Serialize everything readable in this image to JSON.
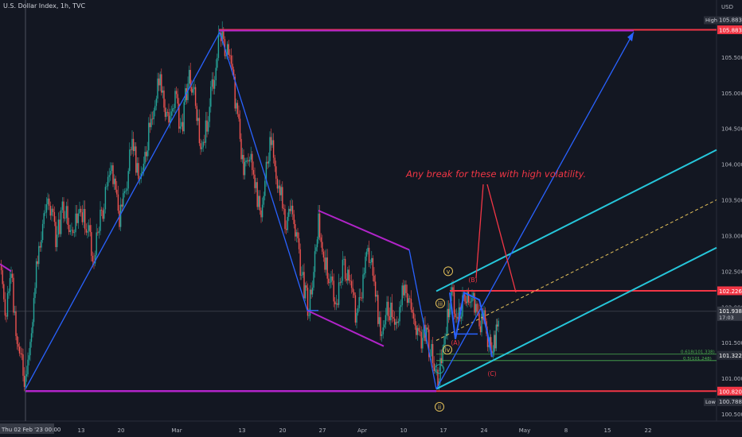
{
  "window": {
    "title": "U.S. Dollar Index, 1h, TVC",
    "currency": "USD",
    "annotation": "Any break for these with high volatility.",
    "date_label": "Thu 02 Feb '23  00:00",
    "time_left": "17:03"
  },
  "colors": {
    "background": "#131722",
    "up": "#26a69a",
    "down": "#ef5350",
    "wave": "#2962ff",
    "magenta": "#b124c9",
    "cyan": "#26c6da",
    "red_line": "#f23645",
    "yellow": "#e6c25a"
  },
  "chart_data": {
    "type": "candlestick",
    "title": "U.S. Dollar Index, 1h, TVC",
    "ylim": [
      100.4,
      106.3
    ],
    "y_ticks": [
      100.5,
      101.0,
      101.5,
      102.0,
      102.5,
      103.0,
      103.5,
      104.0,
      104.5,
      105.0,
      105.5
    ],
    "x_tick_labels": [
      "13",
      "20",
      "Mar",
      "13",
      "20",
      "27",
      "Apr",
      "10",
      "17",
      "24",
      "May",
      "8",
      "15",
      "22"
    ],
    "price_tags": {
      "high_label": "High",
      "high": 105.883,
      "high_line": 105.883,
      "resistance": 102.226,
      "current": 101.938,
      "support": 101.322,
      "low_line": 100.82,
      "low_label": "Low",
      "low": 100.788
    },
    "fib_labels": [
      "0.618(101.338)",
      "0.5(101.248)"
    ],
    "wave_labels": [
      "v",
      "iii",
      "iv",
      "i",
      "ii",
      "(A)",
      "(B)",
      "(C)"
    ],
    "path_points": [
      [
        0,
        102.6
      ],
      [
        8,
        101.9
      ],
      [
        14,
        102.5
      ],
      [
        20,
        101.7
      ],
      [
        26,
        101.4
      ],
      [
        32,
        100.85
      ],
      [
        38,
        101.6
      ],
      [
        44,
        102.3
      ],
      [
        52,
        103.1
      ],
      [
        60,
        103.5
      ],
      [
        70,
        103.0
      ],
      [
        80,
        103.4
      ],
      [
        90,
        102.9
      ],
      [
        100,
        103.5
      ],
      [
        110,
        103.1
      ],
      [
        118,
        102.7
      ],
      [
        126,
        103.2
      ],
      [
        134,
        103.6
      ],
      [
        142,
        103.9
      ],
      [
        150,
        103.3
      ],
      [
        158,
        103.7
      ],
      [
        166,
        104.3
      ],
      [
        174,
        103.9
      ],
      [
        182,
        104.1
      ],
      [
        190,
        104.6
      ],
      [
        198,
        105.2
      ],
      [
        206,
        104.9
      ],
      [
        212,
        104.6
      ],
      [
        220,
        104.9
      ],
      [
        228,
        104.5
      ],
      [
        236,
        105.2
      ],
      [
        244,
        104.9
      ],
      [
        252,
        104.3
      ],
      [
        260,
        104.6
      ],
      [
        268,
        105.2
      ],
      [
        276,
        105.8
      ],
      [
        284,
        105.6
      ],
      [
        292,
        105.2
      ],
      [
        300,
        104.6
      ],
      [
        306,
        103.9
      ],
      [
        312,
        104.2
      ],
      [
        320,
        103.7
      ],
      [
        328,
        103.4
      ],
      [
        336,
        104.1
      ],
      [
        342,
        104.3
      ],
      [
        350,
        103.7
      ],
      [
        358,
        103.2
      ],
      [
        366,
        103.4
      ],
      [
        374,
        102.8
      ],
      [
        382,
        102.3
      ],
      [
        388,
        101.95
      ],
      [
        394,
        102.4
      ],
      [
        400,
        103.2
      ],
      [
        408,
        102.7
      ],
      [
        416,
        102.3
      ],
      [
        424,
        102.1
      ],
      [
        432,
        102.6
      ],
      [
        440,
        102.2
      ],
      [
        448,
        101.9
      ],
      [
        456,
        102.4
      ],
      [
        462,
        102.9
      ],
      [
        470,
        102.3
      ],
      [
        478,
        101.7
      ],
      [
        486,
        102.0
      ],
      [
        494,
        101.8
      ],
      [
        502,
        102.0
      ],
      [
        510,
        102.3
      ],
      [
        518,
        101.9
      ],
      [
        526,
        101.5
      ],
      [
        534,
        101.7
      ],
      [
        542,
        101.3
      ],
      [
        550,
        100.85
      ],
      [
        556,
        101.5
      ],
      [
        562,
        101.9
      ],
      [
        566,
        102.2
      ],
      [
        572,
        102.0
      ],
      [
        578,
        101.8
      ],
      [
        584,
        102.2
      ],
      [
        590,
        101.9
      ],
      [
        596,
        102.1
      ],
      [
        602,
        101.8
      ],
      [
        608,
        101.9
      ],
      [
        614,
        101.5
      ],
      [
        618,
        101.3
      ],
      [
        622,
        101.6
      ],
      [
        626,
        101.95
      ]
    ]
  }
}
